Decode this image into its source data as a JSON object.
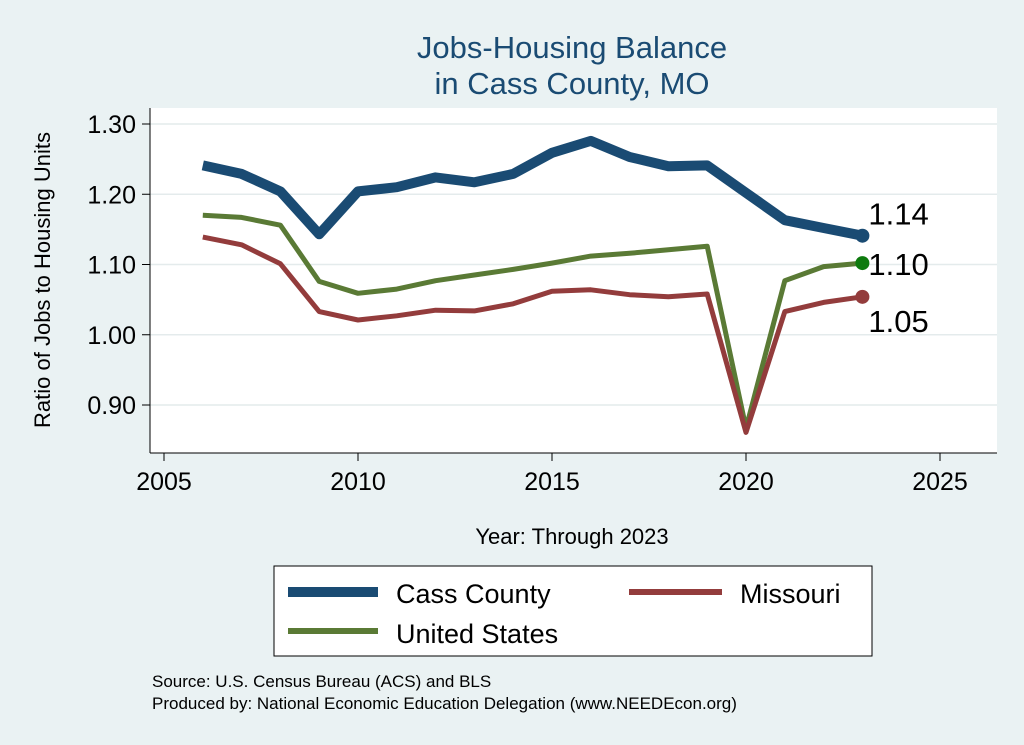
{
  "chart_data": {
    "type": "line",
    "title": [
      "Jobs-Housing Balance",
      "in Cass County, MO"
    ],
    "xlabel": "Year: Through 2023",
    "ylabel": "Ratio of Jobs to Housing Units",
    "xlim": [
      2005,
      2025
    ],
    "ylim": [
      0.86,
      1.33
    ],
    "xticks": [
      2005,
      2010,
      2015,
      2020,
      2025
    ],
    "yticks": [
      0.9,
      1.0,
      1.1,
      1.2,
      1.3
    ],
    "ytick_labels": [
      "0.90",
      "1.00",
      "1.10",
      "1.20",
      "1.30"
    ],
    "grid": true,
    "legend_position": "bottom",
    "x": [
      2006,
      2007,
      2008,
      2009,
      2010,
      2011,
      2012,
      2013,
      2014,
      2015,
      2016,
      2017,
      2018,
      2019,
      2020,
      2021,
      2022,
      2023
    ],
    "series": [
      {
        "name": "Cass County",
        "color": "#1a4b73",
        "values": [
          1.241,
          1.229,
          1.204,
          1.143,
          1.204,
          1.21,
          1.224,
          1.217,
          1.229,
          1.259,
          1.276,
          1.253,
          1.24,
          1.241,
          1.202,
          1.163,
          1.152,
          1.141
        ],
        "end_label": "1.14"
      },
      {
        "name": "United States",
        "color": "#5a7a35",
        "values": [
          1.17,
          1.167,
          1.156,
          1.076,
          1.059,
          1.065,
          1.077,
          1.085,
          1.093,
          1.102,
          1.112,
          1.116,
          1.121,
          1.126,
          0.867,
          1.077,
          1.097,
          1.102
        ],
        "end_label": "1.10"
      },
      {
        "name": "Missouri",
        "color": "#933c3c",
        "values": [
          1.139,
          1.128,
          1.101,
          1.033,
          1.021,
          1.027,
          1.035,
          1.034,
          1.044,
          1.062,
          1.064,
          1.057,
          1.054,
          1.058,
          0.861,
          1.033,
          1.046,
          1.054
        ],
        "end_label": "1.05"
      }
    ],
    "legend": [
      {
        "name": "Cass County",
        "color": "#1a4b73"
      },
      {
        "name": "Missouri",
        "color": "#933c3c"
      },
      {
        "name": "United States",
        "color": "#5a7a35"
      }
    ],
    "notes": [
      "Source: U.S. Census Bureau (ACS) and BLS",
      "Produced by: National Economic Education Delegation (www.NEEDEcon.org)"
    ],
    "end_markers": [
      "#1a4b73",
      "#0e7a0e",
      "#933c3c"
    ]
  }
}
